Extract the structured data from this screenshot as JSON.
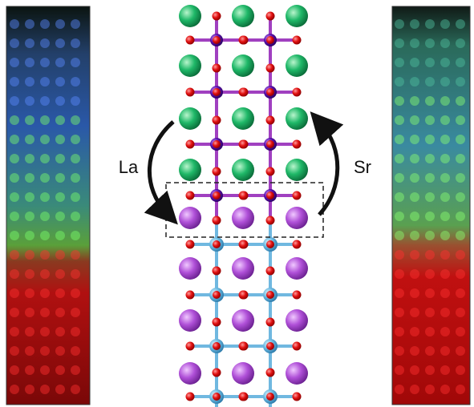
{
  "labels": {
    "left_arrow": "La",
    "right_arrow": "Sr"
  }
}
